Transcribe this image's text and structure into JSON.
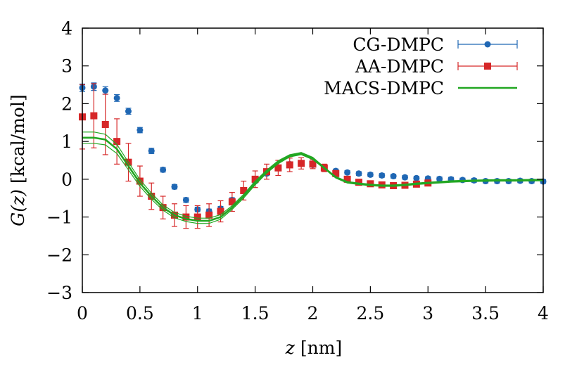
{
  "chart_data": {
    "type": "scatter",
    "xlabel_var": "z",
    "xlabel_unit": "[nm]",
    "ylabel_var": "G(z)",
    "ylabel_unit": "[kcal/mol]",
    "xlim": [
      0,
      4
    ],
    "ylim": [
      -3,
      4
    ],
    "x_ticks": [
      0,
      0.5,
      1,
      1.5,
      2,
      2.5,
      3,
      3.5,
      4
    ],
    "x_tick_labels": [
      "0",
      "0.5",
      "1",
      "1.5",
      "2",
      "2.5",
      "3",
      "3.5",
      "4"
    ],
    "y_ticks": [
      -3,
      -2,
      -1,
      0,
      1,
      2,
      3,
      4
    ],
    "y_tick_labels": [
      "−3",
      "−2",
      "−1",
      "0",
      "1",
      "2",
      "3",
      "4"
    ],
    "grid": false,
    "legend_position": "top-right",
    "series": [
      {
        "name": "CG-DMPC",
        "color": "#1f67b4",
        "marker": "circle",
        "x": [
          0.0,
          0.1,
          0.2,
          0.3,
          0.4,
          0.5,
          0.6,
          0.7,
          0.8,
          0.9,
          1.0,
          1.1,
          1.2,
          1.3,
          1.4,
          1.5,
          1.6,
          1.7,
          1.8,
          1.9,
          2.0,
          2.1,
          2.2,
          2.3,
          2.4,
          2.5,
          2.6,
          2.7,
          2.8,
          2.9,
          3.0,
          3.1,
          3.2,
          3.3,
          3.4,
          3.5,
          3.6,
          3.7,
          3.8,
          3.9,
          4.0
        ],
        "y": [
          2.42,
          2.45,
          2.35,
          2.15,
          1.8,
          1.3,
          0.75,
          0.25,
          -0.2,
          -0.55,
          -0.8,
          -0.85,
          -0.78,
          -0.55,
          -0.3,
          -0.05,
          0.15,
          0.3,
          0.4,
          0.42,
          0.38,
          0.3,
          0.22,
          0.18,
          0.15,
          0.12,
          0.1,
          0.08,
          0.05,
          0.03,
          0.02,
          0.01,
          0.0,
          -0.02,
          -0.03,
          -0.05,
          -0.05,
          -0.05,
          -0.04,
          -0.05,
          -0.06
        ],
        "err": [
          0.1,
          0.1,
          0.1,
          0.09,
          0.08,
          0.07,
          0.07,
          0.06,
          0.06,
          0.06,
          0.06,
          0.06,
          0.06,
          0.06,
          0.06,
          0.05,
          0.05,
          0.05,
          0.05,
          0.05,
          0.05,
          0.05,
          0.05,
          0.05,
          0.05,
          0.05,
          0.05,
          0.05,
          0.05,
          0.05,
          0.05,
          0.05,
          0.05,
          0.05,
          0.05,
          0.05,
          0.05,
          0.05,
          0.05,
          0.05,
          0.05
        ]
      },
      {
        "name": "AA-DMPC",
        "color": "#d62728",
        "marker": "square",
        "x": [
          0.0,
          0.1,
          0.2,
          0.3,
          0.4,
          0.5,
          0.6,
          0.7,
          0.8,
          0.9,
          1.0,
          1.1,
          1.2,
          1.3,
          1.4,
          1.5,
          1.6,
          1.7,
          1.8,
          1.9,
          2.0,
          2.1,
          2.2,
          2.3,
          2.4,
          2.5,
          2.6,
          2.7,
          2.8,
          2.9,
          3.0
        ],
        "y": [
          1.65,
          1.68,
          1.45,
          1.0,
          0.45,
          -0.05,
          -0.45,
          -0.75,
          -0.95,
          -1.0,
          -1.0,
          -0.95,
          -0.85,
          -0.6,
          -0.3,
          0.0,
          0.2,
          0.3,
          0.38,
          0.42,
          0.4,
          0.3,
          0.15,
          0.0,
          -0.08,
          -0.12,
          -0.15,
          -0.17,
          -0.16,
          -0.13,
          -0.1
        ],
        "err": [
          0.85,
          0.85,
          0.8,
          0.6,
          0.5,
          0.4,
          0.35,
          0.3,
          0.3,
          0.3,
          0.3,
          0.3,
          0.28,
          0.25,
          0.25,
          0.22,
          0.2,
          0.2,
          0.18,
          0.15,
          0.12,
          0.1,
          0.08,
          0.06,
          0.06,
          0.06,
          0.06,
          0.06,
          0.06,
          0.06,
          0.06
        ]
      },
      {
        "name": "MACS-DMPC",
        "color": "#22a722",
        "marker": "line",
        "x": [
          0.0,
          0.1,
          0.2,
          0.3,
          0.4,
          0.5,
          0.6,
          0.7,
          0.8,
          0.9,
          1.0,
          1.1,
          1.2,
          1.3,
          1.4,
          1.5,
          1.6,
          1.7,
          1.8,
          1.9,
          2.0,
          2.1,
          2.2,
          2.3,
          2.4,
          2.5,
          2.6,
          2.7,
          2.8,
          2.9,
          3.0,
          3.2,
          3.4,
          3.6,
          3.8,
          4.0
        ],
        "y": [
          1.1,
          1.1,
          1.05,
          0.8,
          0.35,
          -0.1,
          -0.45,
          -0.75,
          -0.95,
          -1.05,
          -1.1,
          -1.1,
          -1.0,
          -0.75,
          -0.45,
          -0.1,
          0.2,
          0.45,
          0.62,
          0.68,
          0.55,
          0.3,
          0.05,
          -0.08,
          -0.12,
          -0.15,
          -0.17,
          -0.17,
          -0.15,
          -0.12,
          -0.1,
          -0.06,
          -0.04,
          -0.03,
          -0.03,
          -0.02
        ],
        "err": [
          0.15,
          0.15,
          0.14,
          0.12,
          0.1,
          0.09,
          0.08,
          0.07,
          0.07,
          0.07,
          0.07,
          0.07,
          0.06,
          0.05,
          0.05,
          0.05,
          0.04,
          0.04,
          0.03,
          0.03,
          0.03,
          0.02,
          0.02,
          0.02,
          0.02,
          0.02,
          0.02,
          0.02,
          0.02,
          0.02,
          0.02,
          0.02,
          0.02,
          0.02,
          0.02,
          0.02
        ]
      }
    ]
  }
}
